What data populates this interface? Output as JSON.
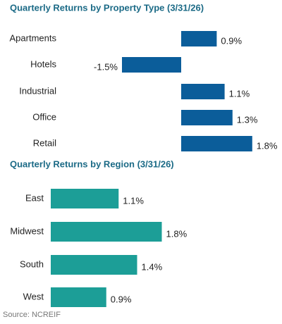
{
  "chart_data": [
    {
      "type": "bar",
      "orientation": "horizontal",
      "title": "Quarterly Returns by Property Type (3/31/26)",
      "categories": [
        "Apartments",
        "Hotels",
        "Industrial",
        "Office",
        "Retail"
      ],
      "values": [
        0.9,
        -1.5,
        1.1,
        1.3,
        1.8
      ],
      "value_labels": [
        "0.9%",
        "-1.5%",
        "1.1%",
        "1.3%",
        "1.8%"
      ],
      "color": "#0b5d9a"
    },
    {
      "type": "bar",
      "orientation": "horizontal",
      "title": "Quarterly Returns by Region (3/31/26)",
      "categories": [
        "East",
        "Midwest",
        "South",
        "West"
      ],
      "values": [
        1.1,
        1.8,
        1.4,
        0.9
      ],
      "value_labels": [
        "1.1%",
        "1.8%",
        "1.4%",
        "0.9%"
      ],
      "color": "#1c9e97"
    }
  ],
  "source": "Source: NCREIF"
}
